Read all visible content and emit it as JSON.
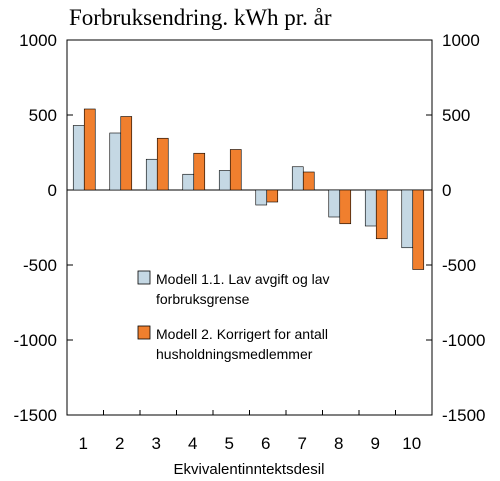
{
  "chart_data": {
    "type": "bar",
    "title": "Forbruksendring. kWh pr. år",
    "xlabel": "Ekvivalentinntektsdesil",
    "ylabel": "",
    "categories": [
      "1",
      "2",
      "3",
      "4",
      "5",
      "6",
      "7",
      "8",
      "9",
      "10"
    ],
    "ylim": [
      -1500,
      1000
    ],
    "yticks": [
      "1000",
      "500",
      "0",
      "-500",
      "-1000",
      "-1500"
    ],
    "ytick_values": [
      1000,
      500,
      0,
      -500,
      -1000,
      -1500
    ],
    "grid": false,
    "legend_placement": "center",
    "series": [
      {
        "name_lines": [
          "Modell 1.1. Lav avgift og lav",
          "forbruksgrense"
        ],
        "color": "#c5d8e4",
        "values": [
          430,
          380,
          205,
          105,
          130,
          -100,
          155,
          -180,
          -240,
          -385
        ]
      },
      {
        "name_lines": [
          "Modell 2. Korrigert for antall",
          "husholdningsmedlemmer"
        ],
        "color": "#f07f2e",
        "values": [
          540,
          490,
          345,
          245,
          270,
          -80,
          120,
          -225,
          -325,
          -530
        ]
      }
    ]
  }
}
